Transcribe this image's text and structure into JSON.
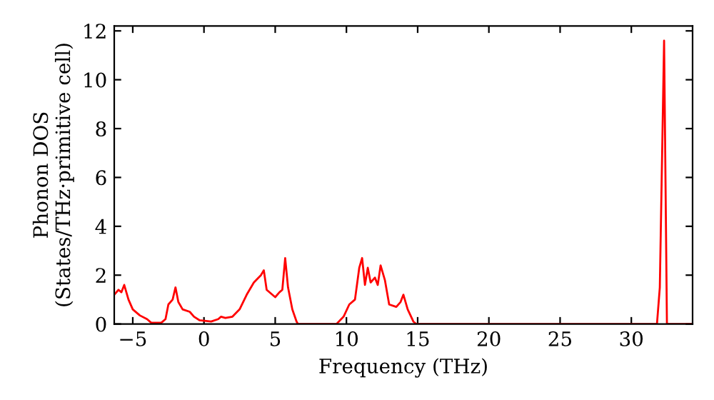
{
  "chart_data": {
    "type": "line",
    "xlabel": "Frequency (THz)",
    "ylabel": "Phonon DOS\n(States/THz·primitive cell)",
    "x": [
      -6.3,
      -6.0,
      -5.8,
      -5.6,
      -5.3,
      -5.0,
      -4.5,
      -4.0,
      -3.7,
      -3.0,
      -2.7,
      -2.5,
      -2.2,
      -2.0,
      -1.8,
      -1.5,
      -1.0,
      -0.7,
      -0.3,
      0.5,
      1.0,
      1.2,
      1.5,
      2.0,
      2.5,
      3.0,
      3.5,
      4.0,
      4.2,
      4.4,
      5.0,
      5.3,
      5.5,
      5.7,
      5.9,
      6.2,
      6.5,
      6.6,
      9.3,
      9.8,
      10.2,
      10.6,
      10.9,
      11.1,
      11.3,
      11.5,
      11.7,
      12.0,
      12.2,
      12.4,
      12.7,
      13.0,
      13.5,
      13.8,
      14.0,
      14.3,
      14.7,
      14.9,
      31.8,
      32.0,
      32.3,
      32.5,
      34.2
    ],
    "series": [
      {
        "color": "#ff0000",
        "values": [
          1.2,
          1.4,
          1.3,
          1.6,
          1.0,
          0.6,
          0.35,
          0.2,
          0.05,
          0.05,
          0.2,
          0.8,
          1.0,
          1.5,
          0.9,
          0.6,
          0.5,
          0.3,
          0.15,
          0.1,
          0.2,
          0.3,
          0.25,
          0.3,
          0.6,
          1.2,
          1.7,
          2.0,
          2.2,
          1.4,
          1.1,
          1.3,
          1.4,
          2.7,
          1.5,
          0.6,
          0.1,
          0,
          0,
          0.3,
          0.8,
          1.0,
          2.3,
          2.7,
          1.6,
          2.3,
          1.7,
          1.9,
          1.6,
          2.4,
          1.8,
          0.8,
          0.7,
          0.9,
          1.2,
          0.6,
          0.1,
          0,
          0,
          1.5,
          11.6,
          0,
          0
        ]
      }
    ],
    "xlim": [
      -6.3,
      34.3
    ],
    "ylim": [
      0,
      12.2
    ],
    "xticks": [
      {
        "value": -5,
        "label": "−5"
      },
      0,
      5,
      10,
      15,
      20,
      25,
      30
    ],
    "yticks": [
      0,
      2,
      4,
      6,
      8,
      10,
      12
    ],
    "grid": false,
    "marker": "none",
    "line_style": "solid"
  }
}
